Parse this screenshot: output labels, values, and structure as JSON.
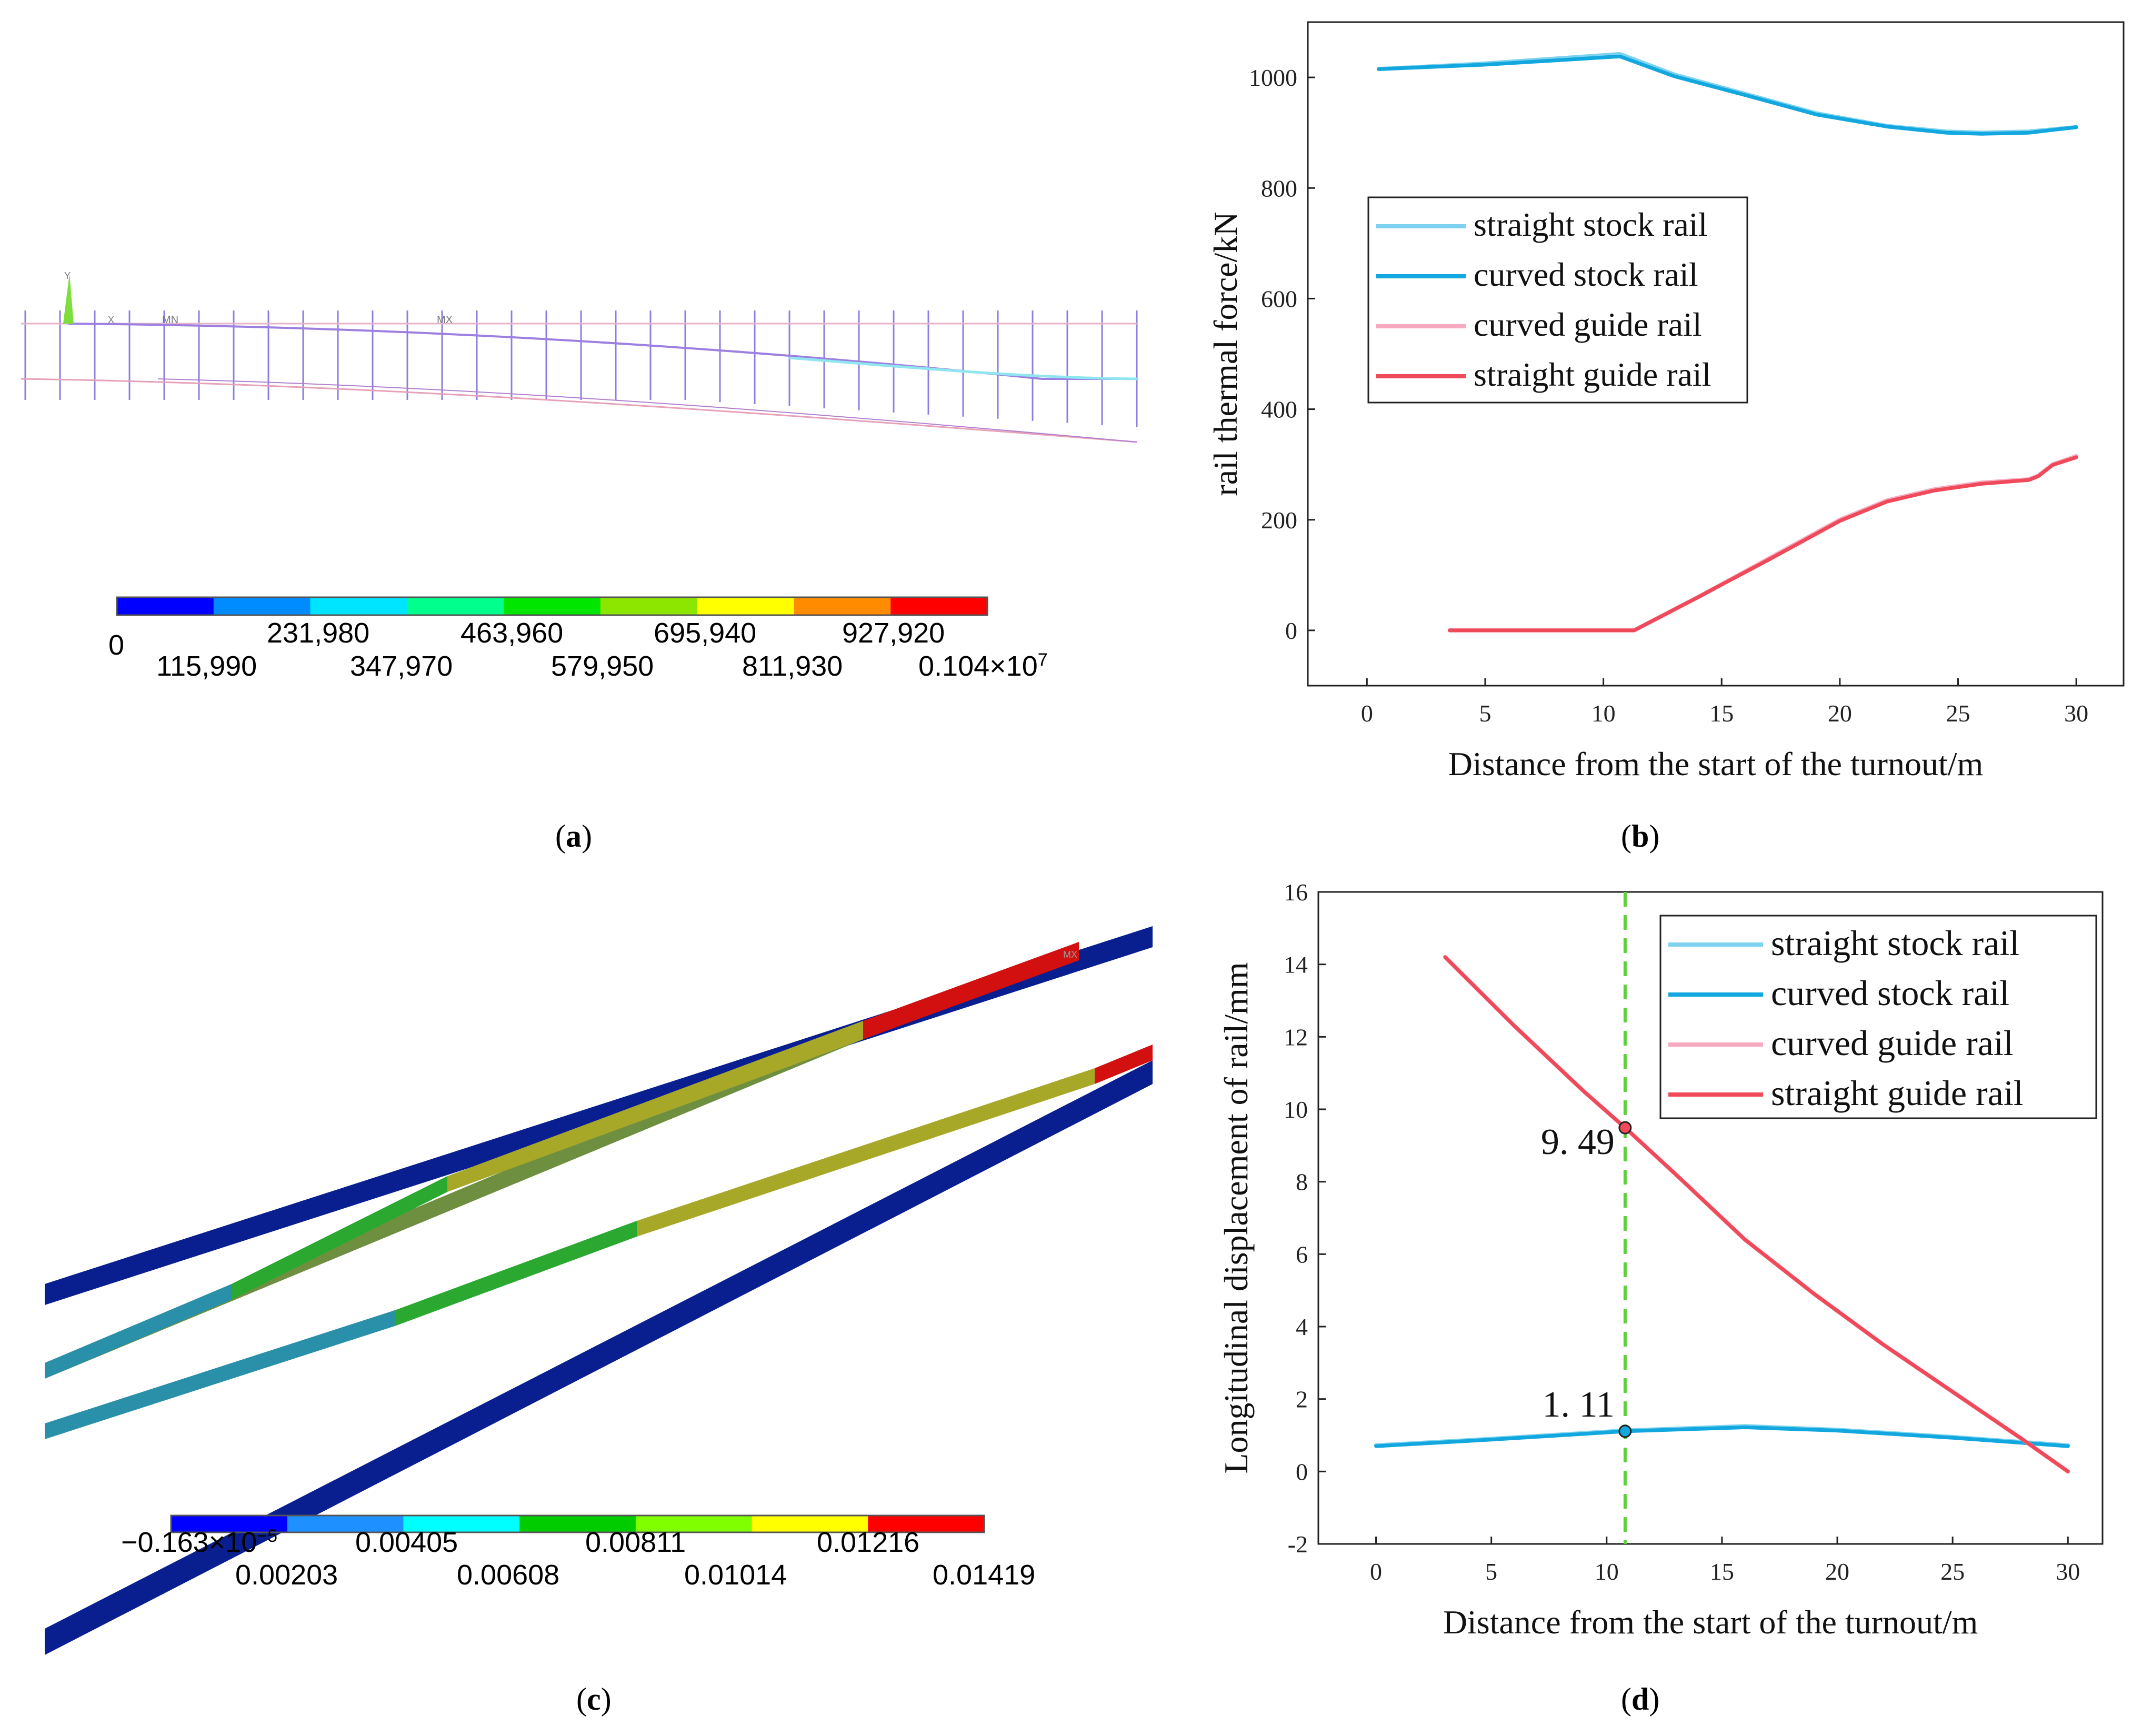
{
  "panels": {
    "a": {
      "caption_open": "(",
      "caption_letter": "a",
      "caption_close": ")",
      "model_labels": {
        "axis_y": "Y",
        "axis_x": "X",
        "min": "MN",
        "max": "MX"
      },
      "legend_colors": [
        "#0000ff",
        "#008cff",
        "#00e5ff",
        "#00ff8c",
        "#00e600",
        "#8ce600",
        "#ffff00",
        "#ff8c00",
        "#ff0000"
      ],
      "legend_upper": [
        "0",
        "231,980",
        "463,960",
        "695,940",
        "927,920"
      ],
      "legend_lower": [
        "115,990",
        "347,970",
        "579,950",
        "811,930",
        "0.104×10"
      ],
      "legend_lower_sup": "7"
    },
    "c": {
      "caption_open": "(",
      "caption_letter": "c",
      "caption_close": ")",
      "model_labels": {
        "max": "MX"
      },
      "legend_colors": [
        "#0000ff",
        "#1e90ff",
        "#00ffff",
        "#00cc00",
        "#7fff00",
        "#ffff00",
        "#ff0000"
      ],
      "legend_upper": [
        "−0.163×10",
        "0.00405",
        "0.00811",
        "0.01216"
      ],
      "legend_upper_sup": "−5",
      "legend_lower": [
        "0.00203",
        "0.00608",
        "0.01014",
        "0.01419"
      ]
    },
    "b": {
      "caption_open": "(",
      "caption_letter": "b",
      "caption_close": ")"
    },
    "d": {
      "caption_open": "(",
      "caption_letter": "d",
      "caption_close": ")"
    }
  },
  "colors": {
    "straight_stock": "#7dd3ef",
    "curved_stock": "#12a7de",
    "curved_guide": "#f7a9c0",
    "straight_guide": "#f04a5a",
    "marker_line": "#5ccf3c"
  },
  "chart_data": [
    {
      "id": "b",
      "type": "line",
      "title": "",
      "xlabel": "Distance from the start of the turnout/m",
      "ylabel": "rail thermal force/kN",
      "xlim": [
        -2.5,
        32
      ],
      "ylim": [
        -100,
        1100
      ],
      "xticks": [
        0,
        5,
        10,
        15,
        20,
        25,
        30
      ],
      "yticks": [
        0,
        200,
        400,
        600,
        800,
        1000
      ],
      "legend_position": "center-left",
      "series": [
        {
          "name": "straight stock rail",
          "color_key": "straight_stock",
          "x": [
            0.5,
            5,
            10.7,
            13,
            16,
            19,
            22,
            24.5,
            26,
            28,
            30
          ],
          "y": [
            1015,
            1025,
            1042,
            1005,
            970,
            935,
            912,
            902,
            900,
            902,
            910
          ]
        },
        {
          "name": "curved stock rail",
          "color_key": "curved_stock",
          "x": [
            0.5,
            5,
            10.7,
            13,
            16,
            19,
            22,
            24.5,
            26,
            28,
            30
          ],
          "y": [
            1015,
            1023,
            1038,
            1002,
            968,
            933,
            911,
            900,
            898,
            900,
            910
          ]
        },
        {
          "name": "curved guide rail",
          "color_key": "curved_guide",
          "x": [
            3.5,
            11.3,
            14,
            17,
            20,
            22,
            24,
            26,
            28,
            28.4,
            29,
            30
          ],
          "y": [
            0,
            0,
            60,
            130,
            200,
            235,
            255,
            267,
            273,
            280,
            300,
            315
          ]
        },
        {
          "name": "straight guide rail",
          "color_key": "straight_guide",
          "x": [
            3.5,
            11.3,
            14,
            17,
            20,
            22,
            24,
            26,
            28,
            28.4,
            29,
            30
          ],
          "y": [
            0,
            0,
            60,
            128,
            198,
            233,
            253,
            265,
            272,
            279,
            299,
            313
          ]
        }
      ]
    },
    {
      "id": "d",
      "type": "line",
      "title": "",
      "xlabel": "Distance from the start of the turnout/m",
      "ylabel": "Longitudinal displacement of rail/mm",
      "xlim": [
        -2.5,
        31.5
      ],
      "ylim": [
        -2,
        16
      ],
      "xticks": [
        0,
        5,
        10,
        15,
        20,
        25,
        30
      ],
      "yticks": [
        -2,
        0,
        2,
        4,
        6,
        8,
        10,
        12,
        14,
        16
      ],
      "legend_position": "top-right",
      "vline_x": 10.8,
      "annotations": [
        {
          "text": "9. 49",
          "x": 10.8,
          "y": 9.49,
          "color_key": "straight_guide"
        },
        {
          "text": "1. 11",
          "x": 10.8,
          "y": 1.11,
          "color_key": "curved_stock"
        }
      ],
      "series": [
        {
          "name": "straight stock rail",
          "color_key": "straight_stock",
          "x": [
            0,
            5,
            10.8,
            16,
            20,
            25,
            30
          ],
          "y": [
            0.72,
            0.9,
            1.13,
            1.25,
            1.15,
            0.95,
            0.72
          ]
        },
        {
          "name": "curved stock rail",
          "color_key": "curved_stock",
          "x": [
            0,
            5,
            10.8,
            16,
            20,
            25,
            30
          ],
          "y": [
            0.7,
            0.88,
            1.11,
            1.22,
            1.13,
            0.93,
            0.7
          ]
        },
        {
          "name": "curved guide rail",
          "color_key": "curved_guide",
          "x": [
            3,
            6,
            9,
            10.8,
            13,
            16,
            19,
            22,
            25,
            28,
            30
          ],
          "y": [
            14.2,
            12.3,
            10.5,
            9.49,
            8.2,
            6.4,
            4.9,
            3.5,
            2.2,
            0.9,
            0
          ]
        },
        {
          "name": "straight guide rail",
          "color_key": "straight_guide",
          "x": [
            3,
            6,
            9,
            10.8,
            13,
            16,
            19,
            22,
            25,
            28,
            30
          ],
          "y": [
            14.2,
            12.3,
            10.5,
            9.49,
            8.2,
            6.4,
            4.9,
            3.5,
            2.2,
            0.9,
            0
          ]
        }
      ]
    }
  ]
}
